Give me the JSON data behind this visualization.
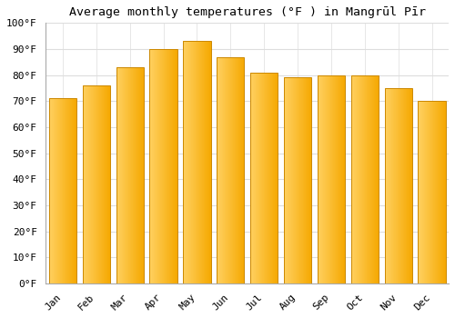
{
  "title": "Average monthly temperatures (°F ) in Mangrūl Pīr",
  "months": [
    "Jan",
    "Feb",
    "Mar",
    "Apr",
    "May",
    "Jun",
    "Jul",
    "Aug",
    "Sep",
    "Oct",
    "Nov",
    "Dec"
  ],
  "values": [
    71,
    76,
    83,
    90,
    93,
    87,
    81,
    79,
    80,
    80,
    75,
    70
  ],
  "bar_color_light": "#FFD060",
  "bar_color_dark": "#F5A800",
  "bar_edge_color": "#CC8800",
  "background_color": "#FFFFFF",
  "grid_color": "#DDDDDD",
  "ylim": [
    0,
    100
  ],
  "ytick_step": 10,
  "title_fontsize": 9.5,
  "tick_fontsize": 8,
  "font_family": "monospace",
  "bar_width": 0.82
}
